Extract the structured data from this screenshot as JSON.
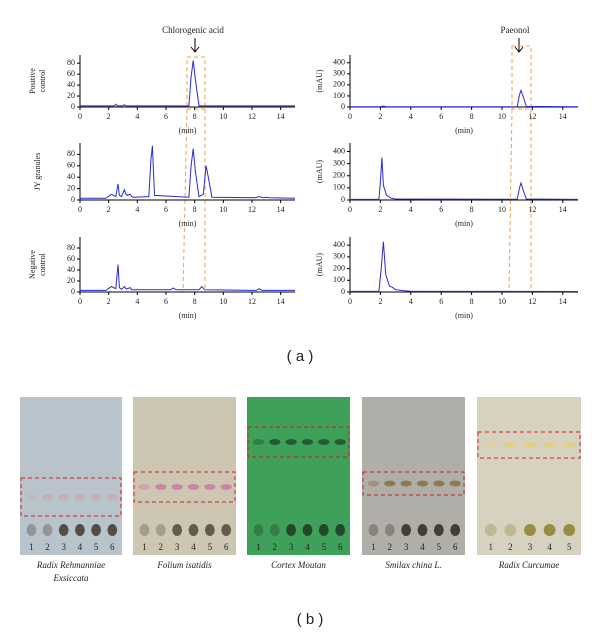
{
  "chart_data": [
    {
      "type": "line",
      "ylabel": [
        "Positive",
        "control"
      ],
      "xlabel": "(min)",
      "color": "#2a2ad0",
      "x": [
        0,
        2.4,
        2.5,
        2.6,
        3.0,
        3.1,
        3.2,
        7.6,
        7.75,
        7.9,
        8.05,
        8.3,
        15
      ],
      "values": [
        2,
        2,
        5,
        2,
        2,
        4,
        2,
        2,
        55,
        85,
        50,
        2,
        2
      ],
      "xlim": [
        0,
        15
      ],
      "xticks": [
        0,
        2,
        4,
        6,
        8,
        10,
        12,
        14
      ],
      "ylim": [
        0,
        95
      ],
      "yticks": [
        0,
        20,
        40,
        60,
        80
      ]
    },
    {
      "type": "line",
      "ylabel": [
        "(mAU)"
      ],
      "xlabel": "(min)",
      "color": "#2a2ad0",
      "x": [
        0,
        2,
        2.2,
        2.4,
        11.0,
        11.15,
        11.25,
        11.4,
        11.6,
        15
      ],
      "values": [
        3,
        3,
        8,
        3,
        3,
        110,
        150,
        90,
        5,
        3
      ],
      "xlim": [
        0,
        15
      ],
      "xticks": [
        0,
        2,
        4,
        6,
        8,
        10,
        12,
        14
      ],
      "ylim": [
        0,
        470
      ],
      "yticks": [
        0,
        100,
        200,
        300,
        400
      ]
    },
    {
      "type": "line",
      "ylabel": [
        "JY granules"
      ],
      "xlabel": "(min)",
      "color": "#2a2ad0",
      "x": [
        0,
        1.8,
        2.2,
        2.5,
        2.65,
        2.75,
        2.9,
        3.1,
        3.2,
        3.3,
        3.5,
        3.6,
        3.7,
        4.8,
        4.95,
        5.05,
        5.2,
        7.6,
        7.75,
        7.9,
        8.05,
        8.3,
        8.6,
        8.8,
        8.95,
        9.2,
        12.2,
        12.5,
        12.8,
        13.0,
        13.2,
        15
      ],
      "values": [
        3,
        3,
        10,
        6,
        28,
        8,
        6,
        18,
        10,
        8,
        10,
        6,
        5,
        6,
        70,
        95,
        8,
        5,
        60,
        90,
        50,
        6,
        10,
        60,
        40,
        5,
        4,
        6,
        4,
        5,
        4,
        3
      ],
      "xlim": [
        0,
        15
      ],
      "xticks": [
        0,
        2,
        4,
        6,
        8,
        10,
        12,
        14
      ],
      "ylim": [
        0,
        100
      ],
      "yticks": [
        0,
        20,
        40,
        60,
        80
      ]
    },
    {
      "type": "line",
      "ylabel": [
        "(mAU)"
      ],
      "xlabel": "(min)",
      "color": "#2a2ad0",
      "x": [
        0,
        1.9,
        2.0,
        2.1,
        2.2,
        2.4,
        2.7,
        3.0,
        11.0,
        11.15,
        11.25,
        11.4,
        11.6,
        15
      ],
      "values": [
        5,
        5,
        150,
        350,
        120,
        40,
        15,
        8,
        6,
        100,
        140,
        80,
        8,
        5
      ],
      "xlim": [
        0,
        15
      ],
      "xticks": [
        0,
        2,
        4,
        6,
        8,
        10,
        12,
        14
      ],
      "ylim": [
        0,
        470
      ],
      "yticks": [
        0,
        100,
        200,
        300,
        400
      ]
    },
    {
      "type": "line",
      "ylabel": [
        "Negative",
        "control"
      ],
      "xlabel": "(min)",
      "color": "#2a2ad0",
      "x": [
        0,
        1.8,
        2.2,
        2.5,
        2.65,
        2.75,
        2.9,
        3.1,
        3.2,
        3.3,
        3.5,
        3.6,
        6.3,
        6.5,
        6.7,
        8.3,
        8.5,
        8.7,
        12.3,
        12.5,
        12.7,
        15
      ],
      "values": [
        3,
        3,
        10,
        6,
        50,
        8,
        5,
        10,
        6,
        6,
        8,
        4,
        4,
        7,
        4,
        4,
        10,
        4,
        3,
        6,
        3,
        3
      ],
      "xlim": [
        0,
        15
      ],
      "xticks": [
        0,
        2,
        4,
        6,
        8,
        10,
        12,
        14
      ],
      "ylim": [
        0,
        100
      ],
      "yticks": [
        0,
        20,
        40,
        60,
        80
      ]
    },
    {
      "type": "line",
      "ylabel": [
        "(mAU)"
      ],
      "xlabel": "(min)",
      "color": "#2a2ad0",
      "x": [
        0,
        1.9,
        2.05,
        2.2,
        2.35,
        2.6,
        2.8,
        3.0,
        3.5,
        4.0,
        15
      ],
      "values": [
        5,
        5,
        200,
        430,
        150,
        50,
        40,
        20,
        12,
        6,
        4
      ],
      "xlim": [
        0,
        15
      ],
      "xticks": [
        0,
        2,
        4,
        6,
        8,
        10,
        12,
        14
      ],
      "ylim": [
        0,
        470
      ],
      "yticks": [
        0,
        100,
        200,
        300,
        400
      ]
    }
  ],
  "annotations": [
    "Chlorogenic acid",
    "Paeonol"
  ],
  "panel_a": "( a )",
  "panel_b": "( b )",
  "plates": [
    {
      "name": [
        "Radix Rehmanniae",
        "Exsiccata"
      ],
      "lanes": [
        "1",
        "2",
        "3",
        "4",
        "5",
        "6"
      ]
    },
    {
      "name": [
        "Folium isatidis"
      ],
      "lanes": [
        "1",
        "2",
        "3",
        "4",
        "5",
        "6"
      ]
    },
    {
      "name": [
        "Cortex Moutan"
      ],
      "lanes": [
        "1",
        "2",
        "3",
        "4",
        "5",
        "6"
      ]
    },
    {
      "name": [
        "Smilax china L."
      ],
      "lanes": [
        "1",
        "2",
        "3",
        "4",
        "5",
        "6"
      ]
    },
    {
      "name": [
        "Radix Curcumae"
      ],
      "lanes": [
        "1",
        "2",
        "3",
        "4",
        "5"
      ]
    }
  ]
}
